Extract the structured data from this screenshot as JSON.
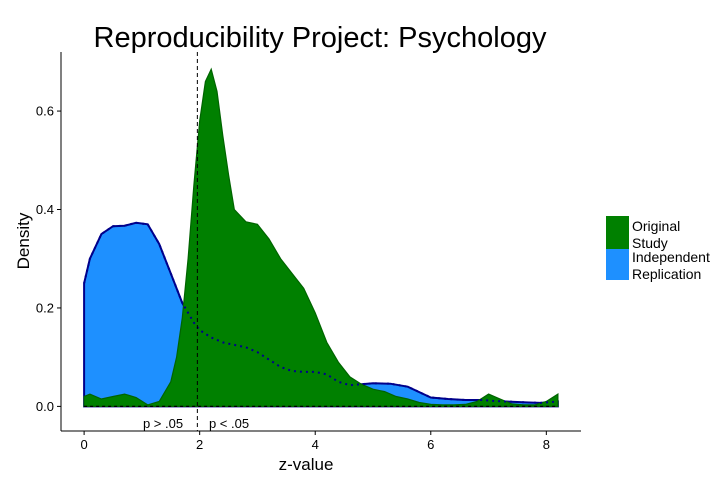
{
  "chart_data": {
    "type": "area",
    "title": "Reproducibility Project: Psychology",
    "xlabel": "z-value",
    "ylabel": "Density",
    "xlim": [
      -0.4,
      8.6
    ],
    "ylim": [
      -0.05,
      0.72
    ],
    "x_ticks": [
      0,
      2,
      4,
      6,
      8
    ],
    "y_ticks": [
      0.0,
      0.2,
      0.4,
      0.6
    ],
    "y_tick_labels": [
      "0.0",
      "0.2",
      "0.4",
      "0.6"
    ],
    "grid": false,
    "legend_position": "right",
    "annotations": [
      {
        "text": "p > .05",
        "x": 1.4,
        "y": -0.033
      },
      {
        "text": "p < .05",
        "x": 2.6,
        "y": -0.033
      }
    ],
    "threshold_line": {
      "x": 1.96,
      "style": "dashed"
    },
    "series": [
      {
        "name": "Independent Replication",
        "color": "#1E90FF",
        "outline_color": "#00008B",
        "x": [
          0.0,
          0.1,
          0.3,
          0.5,
          0.7,
          0.9,
          1.1,
          1.3,
          1.5,
          1.7,
          1.9,
          2.0,
          2.2,
          2.4,
          2.6,
          2.8,
          3.0,
          3.2,
          3.4,
          3.6,
          3.8,
          4.0,
          4.2,
          4.4,
          4.6,
          4.8,
          5.0,
          5.3,
          5.6,
          6.0,
          6.3,
          6.6,
          6.9,
          7.1,
          7.3,
          7.5,
          7.7,
          7.9,
          8.2
        ],
        "y": [
          0.25,
          0.3,
          0.35,
          0.366,
          0.367,
          0.373,
          0.37,
          0.33,
          0.27,
          0.21,
          0.17,
          0.155,
          0.14,
          0.13,
          0.125,
          0.12,
          0.11,
          0.095,
          0.08,
          0.072,
          0.07,
          0.07,
          0.065,
          0.05,
          0.043,
          0.045,
          0.047,
          0.046,
          0.04,
          0.018,
          0.015,
          0.013,
          0.013,
          0.011,
          0.01,
          0.009,
          0.008,
          0.007,
          0.01
        ]
      },
      {
        "name": "Original Study",
        "color": "#008000",
        "outline_color": "#006400",
        "x": [
          0.0,
          0.1,
          0.3,
          0.5,
          0.7,
          0.9,
          1.1,
          1.3,
          1.5,
          1.6,
          1.7,
          1.8,
          1.9,
          2.0,
          2.1,
          2.2,
          2.3,
          2.4,
          2.5,
          2.6,
          2.8,
          3.0,
          3.2,
          3.4,
          3.6,
          3.8,
          4.0,
          4.2,
          4.4,
          4.6,
          4.8,
          5.0,
          5.2,
          5.4,
          5.6,
          5.8,
          6.0,
          6.2,
          6.4,
          6.6,
          6.8,
          7.0,
          7.2,
          7.4,
          7.6,
          7.8,
          8.0,
          8.2
        ],
        "y": [
          0.02,
          0.025,
          0.015,
          0.02,
          0.025,
          0.018,
          0.003,
          0.01,
          0.05,
          0.1,
          0.18,
          0.3,
          0.45,
          0.58,
          0.66,
          0.685,
          0.64,
          0.55,
          0.47,
          0.4,
          0.375,
          0.37,
          0.34,
          0.3,
          0.27,
          0.24,
          0.19,
          0.13,
          0.09,
          0.06,
          0.045,
          0.035,
          0.03,
          0.02,
          0.015,
          0.008,
          0.004,
          0.003,
          0.003,
          0.004,
          0.01,
          0.025,
          0.015,
          0.005,
          0.003,
          0.003,
          0.01,
          0.025
        ]
      }
    ]
  },
  "legend": {
    "items": [
      {
        "line1": "Original",
        "line2": "Study",
        "color": "#008000"
      },
      {
        "line1": "Independent",
        "line2": "Replication",
        "color": "#1E90FF"
      }
    ]
  }
}
